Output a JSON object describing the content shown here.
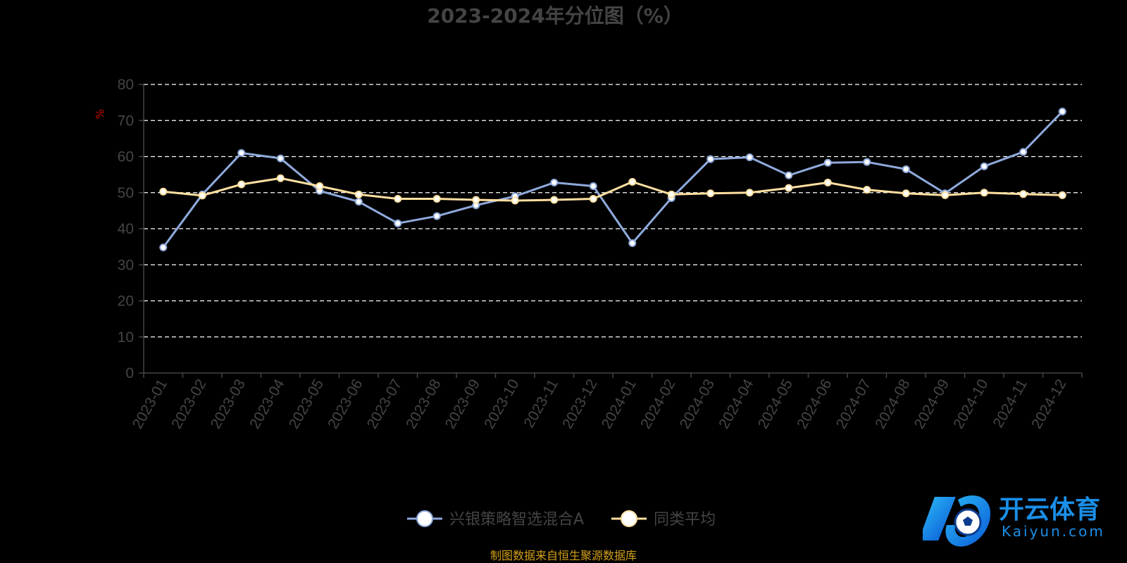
{
  "chart_data": {
    "type": "line",
    "title": "2023-2024年分位图（%）",
    "ylabel": "%",
    "ylim": [
      0,
      80
    ],
    "yticks": [
      0,
      10,
      20,
      30,
      40,
      50,
      60,
      70,
      80
    ],
    "grid": true,
    "legend_position": "bottom",
    "categories": [
      "2023-01",
      "2023-02",
      "2023-03",
      "2023-04",
      "2023-05",
      "2023-06",
      "2023-07",
      "2023-08",
      "2023-09",
      "2023-10",
      "2023-11",
      "2023-12",
      "2024-01",
      "2024-02",
      "2024-03",
      "2024-04",
      "2024-05",
      "2024-06",
      "2024-07",
      "2024-08",
      "2024-09",
      "2024-10",
      "2024-11",
      "2024-12"
    ],
    "series": [
      {
        "name": "兴银策略智选混合A",
        "color": "#8faadc",
        "values": [
          34.8,
          49.5,
          61.0,
          59.5,
          50.5,
          47.5,
          41.5,
          43.5,
          46.5,
          49.0,
          52.8,
          51.8,
          36.0,
          48.5,
          59.3,
          59.8,
          54.8,
          58.3,
          58.5,
          56.5,
          49.8,
          57.3,
          61.3,
          72.5
        ]
      },
      {
        "name": "同类平均",
        "color": "#ffe0a0",
        "values": [
          50.3,
          49.2,
          52.3,
          54.0,
          51.8,
          49.5,
          48.3,
          48.3,
          48.0,
          47.8,
          48.0,
          48.3,
          53.0,
          49.5,
          49.8,
          50.0,
          51.3,
          52.8,
          50.8,
          49.8,
          49.3,
          50.0,
          49.6,
          49.3
        ]
      }
    ]
  },
  "footer": {
    "source": "制图数据来自恒生聚源数据库"
  },
  "logo": {
    "name": "开云体育",
    "domain": "Kaiyun.com"
  }
}
